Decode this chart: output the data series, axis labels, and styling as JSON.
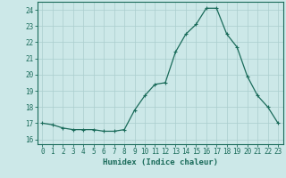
{
  "x": [
    0,
    1,
    2,
    3,
    4,
    5,
    6,
    7,
    8,
    9,
    10,
    11,
    12,
    13,
    14,
    15,
    16,
    17,
    18,
    19,
    20,
    21,
    22,
    23
  ],
  "y": [
    17.0,
    16.9,
    16.7,
    16.6,
    16.6,
    16.6,
    16.5,
    16.5,
    16.6,
    17.8,
    18.7,
    19.4,
    19.5,
    21.4,
    22.5,
    23.1,
    24.1,
    24.1,
    22.5,
    21.7,
    19.9,
    18.7,
    18.0,
    17.0
  ],
  "line_color": "#1a6b5a",
  "marker": "+",
  "marker_size": 3,
  "linewidth": 0.9,
  "bg_color": "#cce8e8",
  "grid_color": "#aacece",
  "xlabel": "Humidex (Indice chaleur)",
  "xlim": [
    -0.5,
    23.5
  ],
  "ylim": [
    15.7,
    24.5
  ],
  "yticks": [
    16,
    17,
    18,
    19,
    20,
    21,
    22,
    23,
    24
  ],
  "xticks": [
    0,
    1,
    2,
    3,
    4,
    5,
    6,
    7,
    8,
    9,
    10,
    11,
    12,
    13,
    14,
    15,
    16,
    17,
    18,
    19,
    20,
    21,
    22,
    23
  ],
  "tick_fontsize": 5.5,
  "label_fontsize": 6.5,
  "tick_color": "#1a6b5a",
  "label_color": "#1a6b5a",
  "spine_color": "#1a6b5a"
}
